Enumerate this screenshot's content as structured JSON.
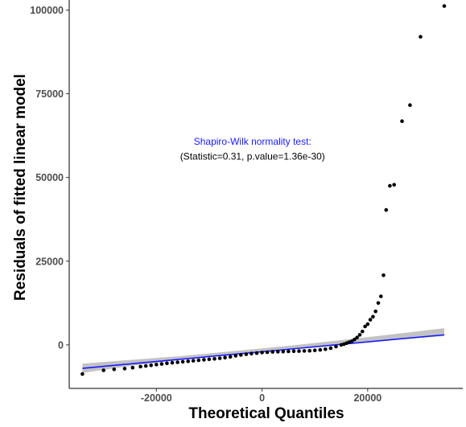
{
  "chart_data": {
    "type": "scatter",
    "title": "",
    "xlabel": "Theoretical Quantiles",
    "ylabel": "Residuals of fitted linear model",
    "xlim": [
      -36500,
      38000
    ],
    "ylim": [
      -13000,
      103000
    ],
    "x_ticks": [
      -20000,
      0,
      20000
    ],
    "x_tick_labels": [
      "-20000",
      "0",
      "20000"
    ],
    "y_ticks": [
      0,
      25000,
      50000,
      75000,
      100000
    ],
    "y_tick_labels": [
      "0",
      "25000",
      "50000",
      "75000",
      "100000"
    ],
    "grid": false,
    "annotation": {
      "line1": "Shapiro-Wilk normality test:",
      "line2": "(Statistic=0.31, p.value=1.36e-30)",
      "line1_color": "#1a1aff",
      "line2_color": "#000000",
      "x": -1800,
      "y1": 59800,
      "y2": 55300
    },
    "reference_line": {
      "x0": -34000,
      "y0": -7000,
      "x1": 34500,
      "y1": 3000,
      "band": [
        {
          "x": -34000,
          "lo": -8400,
          "hi": -5600
        },
        {
          "x": -25000,
          "lo": -6300,
          "hi": -4500
        },
        {
          "x": -15000,
          "lo": -4400,
          "hi": -3300
        },
        {
          "x": -5000,
          "lo": -2600,
          "hi": -1800
        },
        {
          "x": 5000,
          "lo": -1100,
          "hi": -300
        },
        {
          "x": 15000,
          "lo": 300,
          "hi": 1400
        },
        {
          "x": 25000,
          "lo": 1500,
          "hi": 3200
        },
        {
          "x": 34500,
          "lo": 2600,
          "hi": 5000
        }
      ],
      "line_color": "#1a1aff",
      "band_color": "#999999"
    },
    "series": [
      {
        "points": [
          [
            -34000,
            -8700
          ],
          [
            -30000,
            -7600
          ],
          [
            -28000,
            -7300
          ],
          [
            -26000,
            -7100
          ],
          [
            -24500,
            -6800
          ],
          [
            -23000,
            -6500
          ],
          [
            -22000,
            -6300
          ],
          [
            -21000,
            -6100
          ],
          [
            -20000,
            -5900
          ],
          [
            -19000,
            -5700
          ],
          [
            -18000,
            -5500
          ],
          [
            -17000,
            -5350
          ],
          [
            -16000,
            -5200
          ],
          [
            -15000,
            -5050
          ],
          [
            -14000,
            -4900
          ],
          [
            -13000,
            -4750
          ],
          [
            -12000,
            -4600
          ],
          [
            -11000,
            -4450
          ],
          [
            -10000,
            -4300
          ],
          [
            -9000,
            -4150
          ],
          [
            -8000,
            -4000
          ],
          [
            -7000,
            -3800
          ],
          [
            -6000,
            -3550
          ],
          [
            -5000,
            -3250
          ],
          [
            -4000,
            -3000
          ],
          [
            -3000,
            -2800
          ],
          [
            -2000,
            -2600
          ],
          [
            -1000,
            -2450
          ],
          [
            0,
            -2300
          ],
          [
            1000,
            -2200
          ],
          [
            2000,
            -2100
          ],
          [
            3000,
            -2050
          ],
          [
            4000,
            -2000
          ],
          [
            5000,
            -1950
          ],
          [
            6000,
            -1900
          ],
          [
            7000,
            -1850
          ],
          [
            8000,
            -1800
          ],
          [
            9000,
            -1750
          ],
          [
            10000,
            -1650
          ],
          [
            11000,
            -1500
          ],
          [
            12000,
            -1300
          ],
          [
            13000,
            -1000
          ],
          [
            14000,
            -500
          ],
          [
            15000,
            0
          ],
          [
            15500,
            200
          ],
          [
            16000,
            500
          ],
          [
            16500,
            800
          ],
          [
            17000,
            1100
          ],
          [
            17500,
            1600
          ],
          [
            18000,
            2200
          ],
          [
            18500,
            3000
          ],
          [
            19000,
            4000
          ],
          [
            19500,
            5500
          ],
          [
            20000,
            6200
          ],
          [
            20500,
            7500
          ],
          [
            21000,
            8400
          ],
          [
            21500,
            10000
          ],
          [
            22000,
            12500
          ],
          [
            22500,
            14500
          ],
          [
            23000,
            20800
          ],
          [
            23500,
            40300
          ],
          [
            24200,
            47500
          ],
          [
            25000,
            47800
          ],
          [
            26500,
            66800
          ],
          [
            28000,
            71600
          ],
          [
            30000,
            92000
          ],
          [
            34500,
            101200
          ]
        ],
        "color": "#000000"
      }
    ]
  }
}
